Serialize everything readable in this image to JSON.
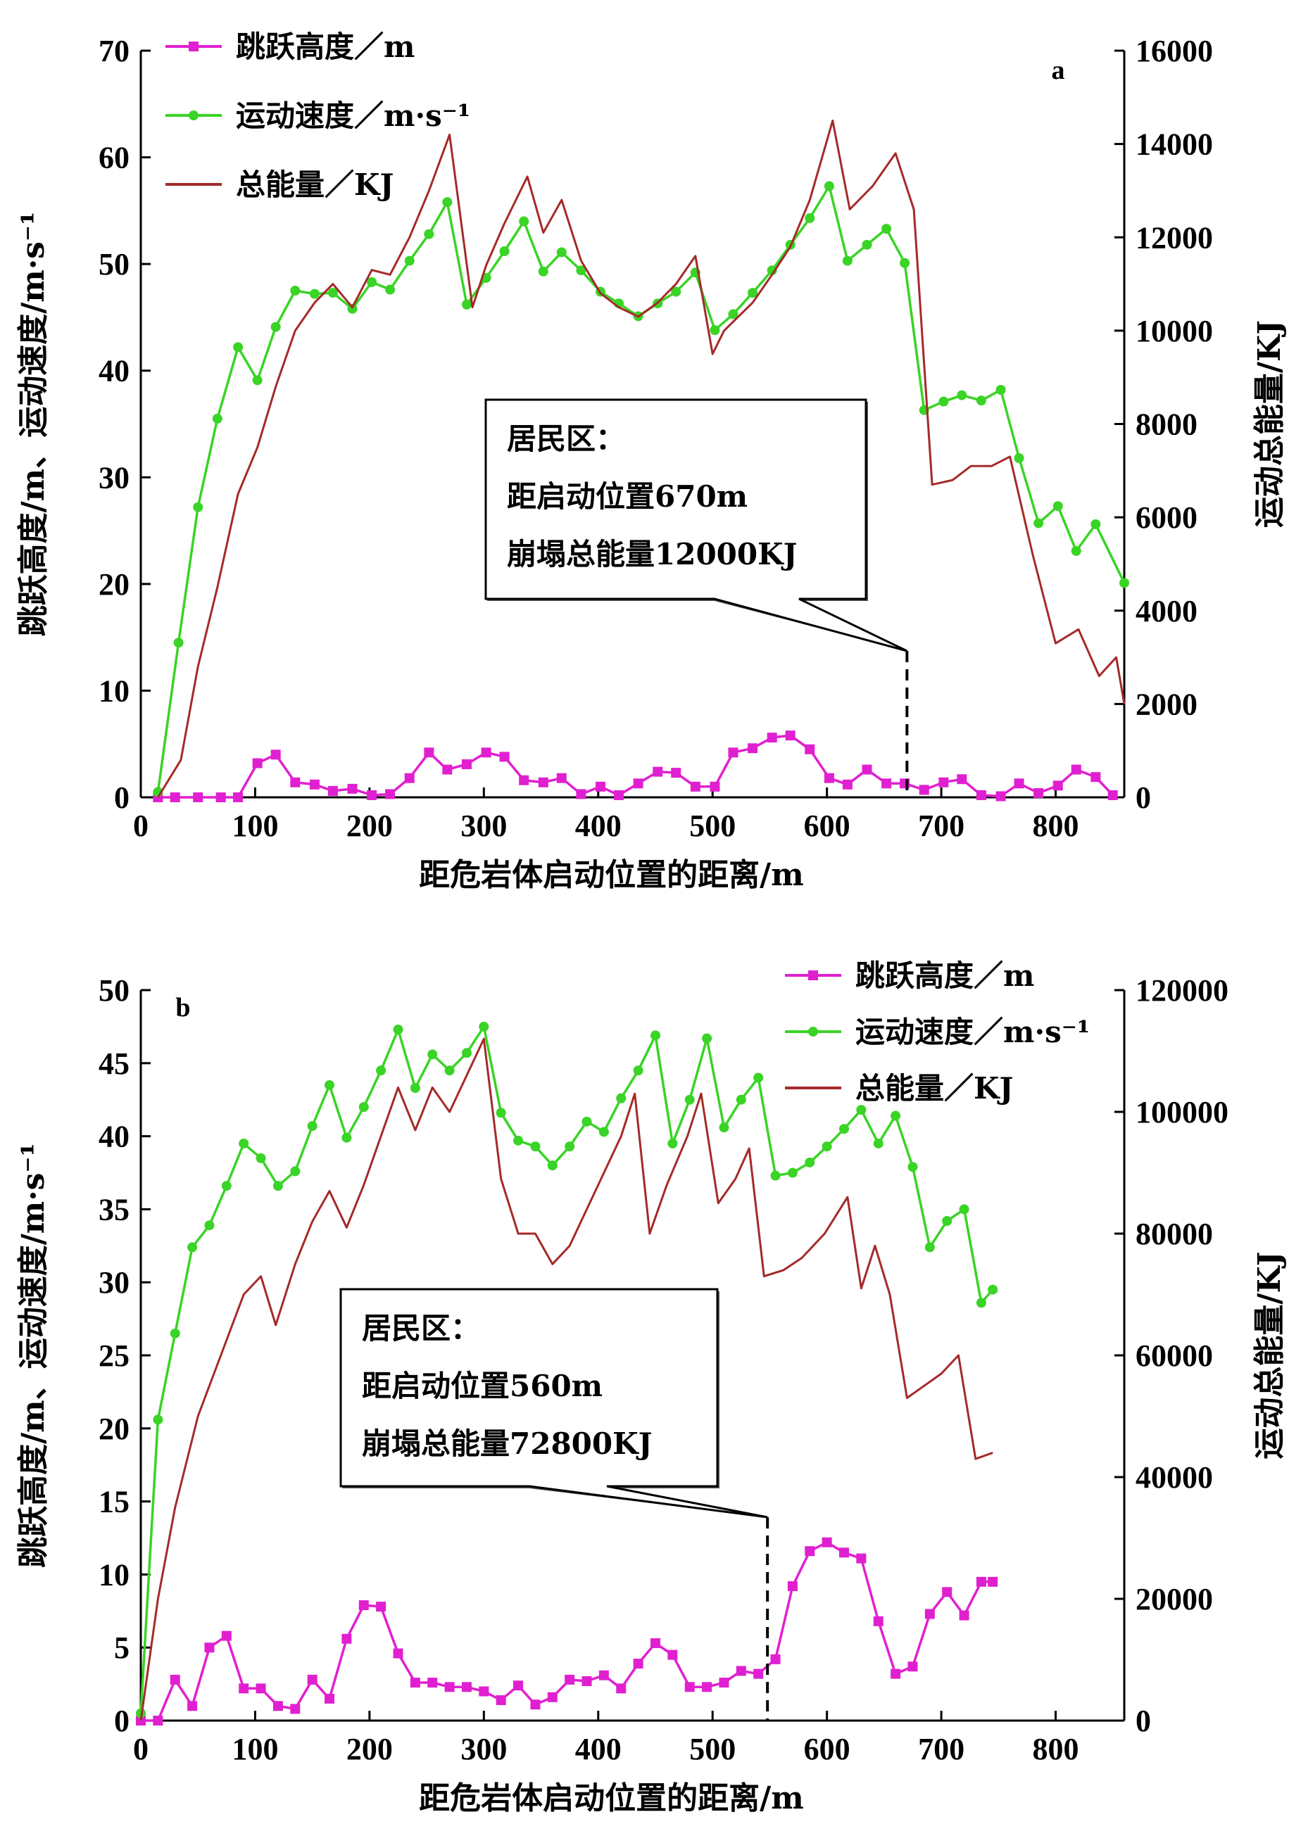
{
  "chart_data": [
    {
      "type": "line",
      "panel_label": "a",
      "xlabel": "距危岩体启动位置的距离/m",
      "ylabel_left": "跳跃高度/m、运动速度/m·s⁻¹",
      "ylabel_right": "运动总能量/KJ",
      "xlim": [
        0,
        860
      ],
      "ylim_left": [
        0,
        70
      ],
      "ylim_right": [
        0,
        16000
      ],
      "xticks": [
        0,
        100,
        200,
        300,
        400,
        500,
        600,
        700,
        800
      ],
      "yticks_left": [
        0,
        10,
        20,
        30,
        40,
        50,
        60,
        70
      ],
      "yticks_right": [
        0,
        2000,
        4000,
        6000,
        8000,
        10000,
        12000,
        14000,
        16000
      ],
      "legend": [
        "跳跃高度／m",
        "运动速度／m·s⁻¹",
        "总能量／KJ"
      ],
      "annotation": {
        "lines": [
          "居民区：",
          "距启动位置670m",
          "崩塌总能量12000KJ"
        ],
        "x": 670
      },
      "series": [
        {
          "name": "跳跃高度／m",
          "axis": "left",
          "color": "#e020d0",
          "marker": "square",
          "x": [
            15,
            30,
            50,
            70,
            85,
            102,
            118,
            135,
            152,
            168,
            185,
            202,
            218,
            235,
            252,
            268,
            285,
            302,
            318,
            335,
            352,
            368,
            385,
            402,
            418,
            435,
            452,
            468,
            485,
            502,
            518,
            535,
            552,
            568,
            585,
            602,
            618,
            635,
            652,
            668,
            685,
            702,
            718,
            735,
            752,
            768,
            785,
            802,
            818,
            835,
            850
          ],
          "values": [
            0,
            0,
            0,
            0,
            0,
            3.2,
            4,
            1.4,
            1.2,
            0.6,
            0.8,
            0.2,
            0.3,
            1.8,
            4.2,
            2.6,
            3.1,
            4.2,
            3.8,
            1.6,
            1.4,
            1.8,
            0.3,
            1.0,
            0.2,
            1.3,
            2.4,
            2.3,
            1.0,
            1.0,
            4.2,
            4.6,
            5.6,
            5.8,
            4.5,
            1.8,
            1.2,
            2.6,
            1.3,
            1.3,
            0.7,
            1.4,
            1.7,
            0.2,
            0.1,
            1.3,
            0.4,
            1.1,
            2.6,
            1.9,
            0.2
          ]
        },
        {
          "name": "运动速度／m·s⁻¹",
          "axis": "left",
          "color": "#39d425",
          "marker": "circle",
          "x": [
            15,
            33,
            50,
            67,
            85,
            102,
            118,
            135,
            152,
            168,
            185,
            202,
            218,
            235,
            252,
            268,
            285,
            302,
            318,
            335,
            352,
            368,
            385,
            402,
            418,
            435,
            452,
            468,
            485,
            502,
            518,
            535,
            552,
            568,
            585,
            602,
            618,
            635,
            652,
            668,
            685,
            702,
            718,
            735,
            752,
            768,
            785,
            802,
            818,
            835,
            860
          ],
          "values": [
            0.5,
            14.5,
            27.2,
            35.5,
            42.2,
            39.1,
            44.1,
            47.5,
            47.2,
            47.3,
            45.8,
            48.3,
            47.6,
            50.3,
            52.8,
            55.8,
            46.2,
            48.7,
            51.2,
            54.0,
            49.3,
            51.1,
            49.4,
            47.4,
            46.3,
            45.1,
            46.3,
            47.4,
            49.2,
            43.8,
            45.3,
            47.3,
            49.4,
            51.8,
            54.3,
            57.3,
            50.3,
            51.8,
            53.3,
            50.1,
            36.3,
            37.1,
            37.7,
            37.2,
            38.2,
            31.8,
            25.7,
            27.3,
            23.1,
            25.6,
            20.1
          ]
        },
        {
          "name": "总能量／KJ",
          "axis": "right",
          "color": "#a52a2a",
          "marker": "none",
          "x": [
            15,
            35,
            50,
            67,
            85,
            102,
            118,
            135,
            152,
            168,
            185,
            202,
            218,
            235,
            252,
            270,
            290,
            302,
            318,
            338,
            352,
            368,
            385,
            402,
            418,
            435,
            452,
            468,
            485,
            500,
            510,
            535,
            552,
            568,
            585,
            605,
            620,
            640,
            660,
            676,
            692,
            710,
            726,
            744,
            760,
            780,
            800,
            820,
            838,
            853,
            860
          ],
          "values": [
            0,
            800,
            2800,
            4500,
            6500,
            7500,
            8800,
            10000,
            10600,
            11000,
            10500,
            11300,
            11200,
            12000,
            13000,
            14200,
            10500,
            11400,
            12300,
            13300,
            12100,
            12800,
            11500,
            10800,
            10500,
            10300,
            10600,
            11000,
            11600,
            9500,
            10000,
            10600,
            11200,
            11800,
            12800,
            14500,
            12600,
            13100,
            13800,
            12600,
            6700,
            6800,
            7100,
            7100,
            7300,
            5200,
            3300,
            3600,
            2600,
            3000,
            2000
          ]
        }
      ]
    },
    {
      "type": "line",
      "panel_label": "b",
      "xlabel": "距危岩体启动位置的距离/m",
      "ylabel_left": "跳跃高度/m、运动速度/m·s⁻¹",
      "ylabel_right": "运动总能量/KJ",
      "xlim": [
        0,
        860
      ],
      "ylim_left": [
        0,
        50
      ],
      "ylim_right": [
        0,
        120000
      ],
      "xticks": [
        0,
        100,
        200,
        300,
        400,
        500,
        600,
        700,
        800
      ],
      "yticks_left": [
        0,
        5,
        10,
        15,
        20,
        25,
        30,
        35,
        40,
        45,
        50
      ],
      "yticks_right": [
        0,
        20000,
        40000,
        60000,
        80000,
        100000,
        120000
      ],
      "legend": [
        "跳跃高度／m",
        "运动速度／m·s⁻¹",
        "总能量／KJ"
      ],
      "annotation": {
        "lines": [
          "居民区：",
          "距启动位置560m",
          "崩塌总能量72800KJ"
        ],
        "x": 548
      },
      "series": [
        {
          "name": "跳跃高度／m",
          "axis": "left",
          "color": "#e020d0",
          "marker": "square",
          "x": [
            0,
            15,
            30,
            45,
            60,
            75,
            90,
            105,
            120,
            135,
            150,
            165,
            180,
            195,
            210,
            225,
            240,
            255,
            270,
            285,
            300,
            315,
            330,
            345,
            360,
            375,
            390,
            405,
            420,
            435,
            450,
            465,
            480,
            495,
            510,
            525,
            540,
            555,
            570,
            585,
            600,
            615,
            630,
            645,
            660,
            675,
            690,
            705,
            720,
            735,
            745
          ],
          "values": [
            0,
            0,
            2.8,
            1.0,
            5.0,
            5.8,
            2.2,
            2.2,
            1.0,
            0.8,
            2.8,
            1.5,
            5.6,
            7.9,
            7.8,
            4.6,
            2.6,
            2.6,
            2.3,
            2.3,
            2.0,
            1.4,
            2.4,
            1.1,
            1.6,
            2.8,
            2.7,
            3.1,
            2.2,
            3.9,
            5.3,
            4.5,
            2.3,
            2.3,
            2.6,
            3.4,
            3.2,
            4.2,
            9.2,
            11.6,
            12.2,
            11.5,
            11.1,
            6.8,
            3.2,
            3.7,
            7.3,
            8.8,
            7.2,
            9.5,
            9.5
          ]
        },
        {
          "name": "运动速度／m·s⁻¹",
          "axis": "left",
          "color": "#39d425",
          "marker": "circle",
          "x": [
            0,
            15,
            30,
            45,
            60,
            75,
            90,
            105,
            120,
            135,
            150,
            165,
            180,
            195,
            210,
            225,
            240,
            255,
            270,
            285,
            300,
            315,
            330,
            345,
            360,
            375,
            390,
            405,
            420,
            435,
            450,
            465,
            480,
            495,
            510,
            525,
            540,
            555,
            570,
            585,
            600,
            615,
            630,
            645,
            660,
            675,
            690,
            705,
            720,
            735,
            745
          ],
          "values": [
            0.5,
            20.6,
            26.5,
            32.4,
            33.9,
            36.6,
            39.5,
            38.5,
            36.6,
            37.6,
            40.7,
            43.5,
            39.9,
            42.0,
            44.5,
            47.3,
            43.3,
            45.6,
            44.5,
            45.7,
            47.5,
            41.6,
            39.7,
            39.3,
            38.0,
            39.3,
            41.0,
            40.3,
            42.6,
            44.5,
            46.9,
            39.5,
            42.5,
            46.7,
            40.6,
            42.5,
            44.0,
            37.3,
            37.5,
            38.2,
            39.3,
            40.5,
            41.8,
            39.5,
            41.4,
            37.9,
            32.4,
            34.2,
            35.0,
            28.6,
            29.5
          ]
        },
        {
          "name": "总能量／KJ",
          "axis": "right",
          "color": "#a52a2a",
          "marker": "none",
          "x": [
            0,
            15,
            30,
            50,
            70,
            90,
            105,
            118,
            135,
            150,
            165,
            180,
            195,
            210,
            225,
            240,
            255,
            270,
            285,
            300,
            315,
            330,
            345,
            360,
            375,
            390,
            405,
            420,
            432,
            445,
            460,
            478,
            490,
            505,
            520,
            532,
            545,
            562,
            578,
            598,
            618,
            630,
            642,
            655,
            670,
            685,
            700,
            715,
            730,
            745
          ],
          "values": [
            0,
            20000,
            35000,
            50000,
            60000,
            70000,
            73000,
            65000,
            75000,
            82000,
            87000,
            81000,
            88000,
            96000,
            104000,
            97000,
            104000,
            100000,
            106000,
            112000,
            89000,
            80000,
            80000,
            75000,
            78000,
            84000,
            90000,
            96000,
            103000,
            80000,
            88000,
            96000,
            103000,
            85000,
            89000,
            94000,
            73000,
            74000,
            76000,
            80000,
            86000,
            71000,
            78000,
            70000,
            53000,
            55000,
            57000,
            60000,
            43000,
            44000
          ]
        }
      ]
    }
  ]
}
